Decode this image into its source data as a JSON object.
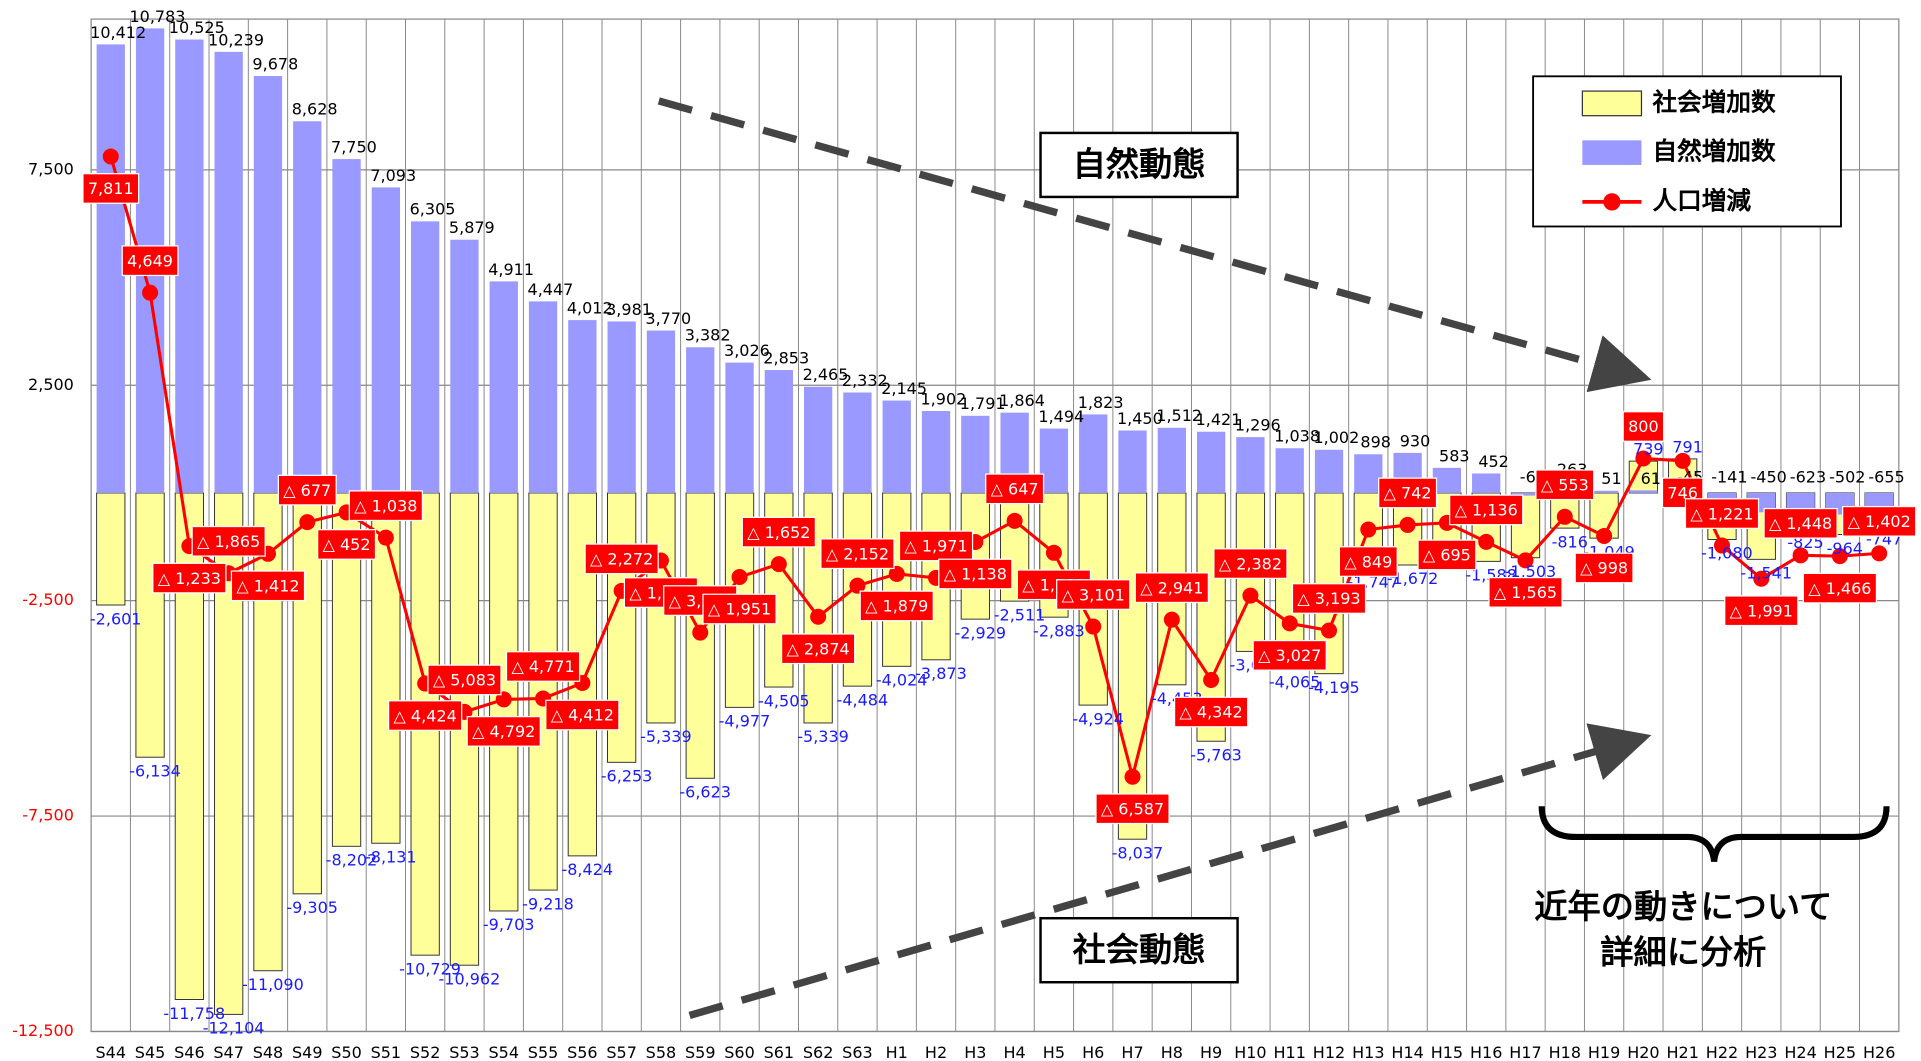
{
  "chart_data": {
    "type": "bar-line",
    "categories": [
      "S44",
      "S45",
      "S46",
      "S47",
      "S48",
      "S49",
      "S50",
      "S51",
      "S52",
      "S53",
      "S54",
      "S55",
      "S56",
      "S57",
      "S58",
      "S59",
      "S60",
      "S61",
      "S62",
      "S63",
      "H1",
      "H2",
      "H3",
      "H4",
      "H5",
      "H6",
      "H7",
      "H8",
      "H9",
      "H10",
      "H11",
      "H12",
      "H13",
      "H14",
      "H15",
      "H16",
      "H17",
      "H18",
      "H19",
      "H20",
      "H21",
      "H22",
      "H23",
      "H24",
      "H25",
      "H26"
    ],
    "series": [
      {
        "name": "社会増加数",
        "color": "#ffff99",
        "values": [
          -2601,
          -6134,
          -11758,
          -12104,
          -11090,
          -9305,
          -8202,
          -8131,
          -10729,
          -10962,
          -9703,
          -9218,
          -8424,
          -6253,
          -5339,
          -6623,
          -4977,
          -4505,
          -5339,
          -4484,
          -4024,
          -3873,
          -2929,
          -2511,
          -2883,
          -4924,
          -8037,
          -4453,
          -5763,
          -3678,
          -4065,
          -4195,
          -1747,
          -1672,
          -1278,
          -1588,
          -1503,
          -816,
          -1049,
          739,
          791,
          -1080,
          -1541,
          -825,
          -964,
          -747
        ],
        "value_labels": [
          "-2,601",
          "-6,134",
          "-11,758",
          "-12,104",
          "-11,090",
          "-9,305",
          "-8,202",
          "-8,131",
          "-10,729",
          "-10,962",
          "-9,703",
          "-9,218",
          "-8,424",
          "-6,253",
          "-5,339",
          "-6,623",
          "-4,977",
          "-4,505",
          "-5,339",
          "-4,484",
          "-4,024",
          "-3,873",
          "-2,929",
          "-2,511",
          "-2,883",
          "-4,924",
          "-8,037",
          "-4,453",
          "-5,763",
          "-3,678",
          "-4,065",
          "-4,195",
          "-1,747",
          "-1,672",
          "-1,278",
          "-1,588",
          "-1,503",
          "-816",
          "-1,049",
          "739",
          "791",
          "-1,080",
          "-1,541",
          "-825",
          "-964",
          "-747"
        ]
      },
      {
        "name": "自然増加数",
        "color": "#9999ff",
        "values": [
          10412,
          10783,
          10525,
          10239,
          9678,
          8628,
          7750,
          7093,
          6305,
          5879,
          4911,
          4447,
          4012,
          3981,
          3770,
          3382,
          3026,
          2853,
          2465,
          2332,
          2145,
          1902,
          1791,
          1864,
          1494,
          1823,
          1450,
          1512,
          1421,
          1296,
          1038,
          1002,
          898,
          930,
          583,
          452,
          -62,
          263,
          51,
          61,
          -45,
          -141,
          -450,
          -623,
          -502,
          -655
        ],
        "value_labels": [
          "10,412",
          "10,783",
          "10,525",
          "10,239",
          "9,678",
          "8,628",
          "7,750",
          "7,093",
          "6,305",
          "5,879",
          "4,911",
          "4,447",
          "4,012",
          "3,981",
          "3,770",
          "3,382",
          "3,026",
          "2,853",
          "2,465",
          "2,332",
          "2,145",
          "1,902",
          "1,791",
          "1,864",
          "1,494",
          "1,823",
          "1,450",
          "1,512",
          "1,421",
          "1,296",
          "1,038",
          "1,002",
          "898",
          "930",
          "583",
          "452",
          "-62",
          "263",
          "51",
          "61",
          "-45",
          "-141",
          "-450",
          "-623",
          "-502",
          "-655"
        ]
      },
      {
        "name": "人口増減",
        "color": "#ff0000",
        "values": [
          7811,
          4649,
          -1233,
          -1865,
          -1412,
          -677,
          -452,
          -1038,
          -4424,
          -5083,
          -4792,
          -4771,
          -4412,
          -2272,
          -1569,
          -3241,
          -1951,
          -1652,
          -2874,
          -2152,
          -1879,
          -1971,
          -1138,
          -647,
          -1389,
          -3101,
          -6587,
          -2941,
          -4342,
          -2382,
          -3027,
          -3193,
          -849,
          -742,
          -695,
          -1136,
          -1565,
          -553,
          -998,
          800,
          746,
          -1221,
          -1991,
          -1448,
          -1466,
          -1402
        ],
        "value_labels": [
          "7,811",
          "4,649",
          "△ 1,233",
          "△ 1,865",
          "△ 1,412",
          "△ 677",
          "△ 452",
          "△ 1,038",
          "△ 4,424",
          "△ 5,083",
          "△ 4,792",
          "△ 4,771",
          "△ 4,412",
          "△ 2,272",
          "△ 1,569",
          "△ 3,241",
          "△ 1,951",
          "△ 1,652",
          "△ 2,874",
          "△ 2,152",
          "△ 1,879",
          "△ 1,971",
          "△ 1,138",
          "△ 647",
          "△ 1,389",
          "△ 3,101",
          "△ 6,587",
          "△ 2,941",
          "△ 4,342",
          "△ 2,382",
          "△ 3,027",
          "△ 3,193",
          "△ 849",
          "△ 742",
          "△ 695",
          "△ 1,136",
          "△ 1,565",
          "△ 553",
          "△ 998",
          "800",
          "746",
          "△ 1,221",
          "△ 1,991",
          "△ 1,448",
          "△ 1,466",
          "△ 1,402"
        ]
      }
    ],
    "ylim": [
      -12500,
      11000
    ],
    "yticks": [
      {
        "value": -12500,
        "label": "-12,500"
      },
      {
        "value": -7500,
        "label": "-7,500"
      },
      {
        "value": -2500,
        "label": "-2,500"
      },
      {
        "value": 2500,
        "label": "2,500"
      },
      {
        "value": 7500,
        "label": "7,500"
      }
    ],
    "grid": true,
    "annotations": [
      "自然動態",
      "社会動態",
      "近年の動きについて",
      "詳細に分析"
    ]
  }
}
